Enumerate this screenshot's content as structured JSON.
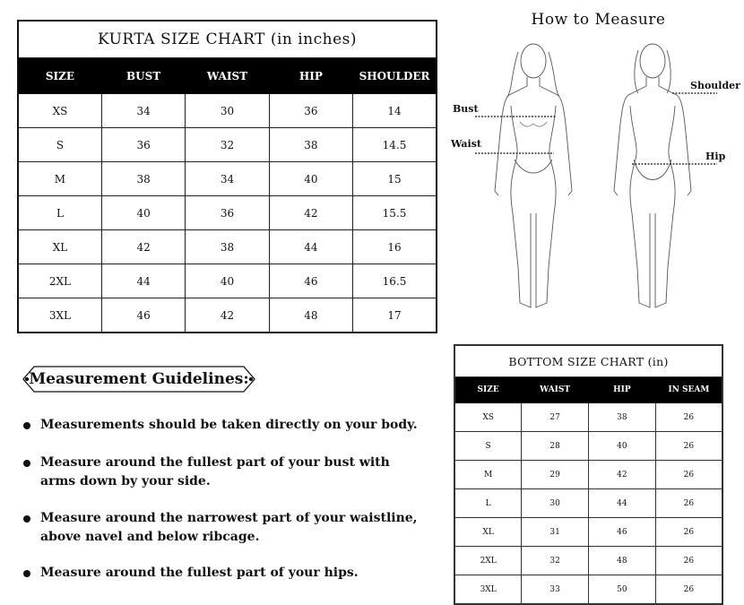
{
  "kurta_chart": {
    "title": "KURTA SIZE CHART (in inches)",
    "headers": [
      "SIZE",
      "BUST",
      "WAIST",
      "HIP",
      "SHOULDER"
    ],
    "rows": [
      [
        "XS",
        "34",
        "30",
        "36",
        "14"
      ],
      [
        "S",
        "36",
        "32",
        "38",
        "14.5"
      ],
      [
        "M",
        "38",
        "34",
        "40",
        "15"
      ],
      [
        "L",
        "40",
        "36",
        "42",
        "15.5"
      ],
      [
        "XL",
        "42",
        "38",
        "44",
        "16"
      ],
      [
        "2XL",
        "44",
        "40",
        "46",
        "16.5"
      ],
      [
        "3XL",
        "46",
        "42",
        "48",
        "17"
      ]
    ]
  },
  "how_to_measure": {
    "title": "How to  Measure",
    "labels": {
      "bust": "Bust",
      "waist": "Waist",
      "shoulder": "Shoulder",
      "hip": "Hip"
    }
  },
  "bottom_chart": {
    "title": "BOTTOM SIZE CHART (in)",
    "headers": [
      "SIZE",
      "WAIST",
      "HIP",
      "IN SEAM"
    ],
    "rows": [
      [
        "XS",
        "27",
        "38",
        "26"
      ],
      [
        "S",
        "28",
        "40",
        "26"
      ],
      [
        "M",
        "29",
        "42",
        "26"
      ],
      [
        "L",
        "30",
        "44",
        "26"
      ],
      [
        "XL",
        "31",
        "46",
        "26"
      ],
      [
        "2XL",
        "32",
        "48",
        "26"
      ],
      [
        "3XL",
        "33",
        "50",
        "26"
      ]
    ]
  },
  "guidelines": {
    "title": "Measurement Guidelines:",
    "items": [
      "Measurements should be taken directly on your body.",
      "Measure around the fullest part of your bust with arms down by your side.",
      "Measure around the narrowest part of your waistline, above navel and below ribcage.",
      "Measure around the fullest part of your hips."
    ]
  }
}
